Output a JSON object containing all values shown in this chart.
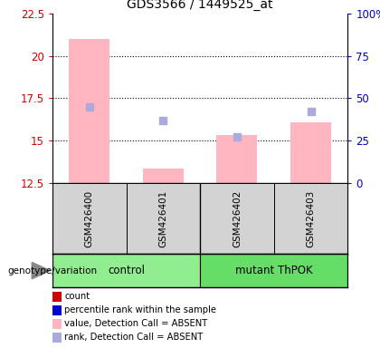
{
  "title": "GDS3566 / 1449525_at",
  "samples": [
    "GSM426400",
    "GSM426401",
    "GSM426402",
    "GSM426403"
  ],
  "group_labels": [
    "control",
    "mutant ThPOK"
  ],
  "ylim_left": [
    12.5,
    22.5
  ],
  "ylim_right": [
    0,
    100
  ],
  "yticks_left": [
    12.5,
    15.0,
    17.5,
    20.0,
    22.5
  ],
  "yticks_right": [
    0,
    25,
    50,
    75,
    100
  ],
  "ytick_labels_left": [
    "12.5",
    "15",
    "17.5",
    "20",
    "22.5"
  ],
  "ytick_labels_right": [
    "0",
    "25",
    "50",
    "75",
    "100%"
  ],
  "bar_values": [
    21.0,
    13.35,
    15.3,
    16.1
  ],
  "bar_color": "#ffb6c1",
  "bar_width": 0.55,
  "dot_values": [
    17.0,
    16.2,
    15.2,
    16.7
  ],
  "dot_color": "#aaaadd",
  "dot_size": 35,
  "left_color": "#cc0000",
  "right_color": "#0000cc",
  "grid_ticks": [
    15.0,
    17.5,
    20.0
  ],
  "legend_items": [
    {
      "label": "count",
      "color": "#cc0000"
    },
    {
      "label": "percentile rank within the sample",
      "color": "#0000cc"
    },
    {
      "label": "value, Detection Call = ABSENT",
      "color": "#ffb6c1"
    },
    {
      "label": "rank, Detection Call = ABSENT",
      "color": "#aaaadd"
    }
  ]
}
